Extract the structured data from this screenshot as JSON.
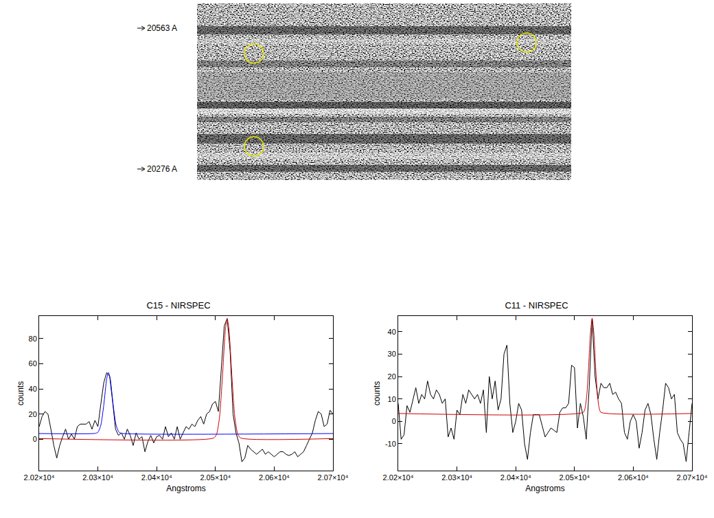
{
  "image_panel": {
    "wavelength_labels": [
      "20563 A",
      "20276 A"
    ]
  },
  "chart_data": [
    {
      "type": "line",
      "title": "C15 - NIRSPEC",
      "x_label": "Angstroms",
      "y_label": "counts",
      "xlim": [
        20200,
        20700
      ],
      "xticks": [
        {
          "value": 20200,
          "label": "2.02×10⁴"
        },
        {
          "value": 20300,
          "label": "2.03×10⁴"
        },
        {
          "value": 20400,
          "label": "2.04×10⁴"
        },
        {
          "value": 20500,
          "label": "2.05×10⁴"
        },
        {
          "value": 20600,
          "label": "2.06×10⁴"
        },
        {
          "value": 20700,
          "label": "2.07×10⁴"
        }
      ],
      "ylim": [
        -25,
        98
      ],
      "yticks": [
        0,
        20,
        40,
        60,
        80
      ],
      "grid": false,
      "series": [
        {
          "color": "#000000",
          "x": [
            20200,
            20205,
            20210,
            20215,
            20220,
            20225,
            20230,
            20235,
            20240,
            20245,
            20250,
            20255,
            20260,
            20265,
            20270,
            20275,
            20280,
            20285,
            20290,
            20295,
            20300,
            20305,
            20310,
            20315,
            20320,
            20325,
            20330,
            20335,
            20340,
            20345,
            20350,
            20355,
            20360,
            20365,
            20370,
            20375,
            20380,
            20385,
            20390,
            20395,
            20400,
            20405,
            20410,
            20415,
            20420,
            20425,
            20430,
            20435,
            20440,
            20445,
            20450,
            20455,
            20460,
            20465,
            20470,
            20475,
            20480,
            20485,
            20490,
            20495,
            20500,
            20505,
            20510,
            20515,
            20520,
            20525,
            20530,
            20535,
            20540,
            20545,
            20550,
            20555,
            20560,
            20565,
            20570,
            20575,
            20580,
            20585,
            20590,
            20595,
            20600,
            20605,
            20610,
            20615,
            20620,
            20625,
            20630,
            20635,
            20640,
            20645,
            20650,
            20655,
            20660,
            20665,
            20670,
            20675,
            20680,
            20685,
            20690,
            20695,
            20700
          ],
          "values": [
            10,
            18,
            22,
            20,
            8,
            -5,
            -15,
            -5,
            2,
            8,
            0,
            4,
            0,
            10,
            12,
            12,
            12,
            14,
            8,
            15,
            10,
            28,
            45,
            53,
            50,
            30,
            8,
            3,
            5,
            0,
            8,
            3,
            -5,
            5,
            0,
            2,
            -10,
            -2,
            3,
            -3,
            2,
            3,
            0,
            10,
            2,
            5,
            0,
            10,
            0,
            5,
            10,
            8,
            12,
            10,
            15,
            18,
            12,
            20,
            22,
            28,
            30,
            22,
            55,
            90,
            96,
            70,
            20,
            5,
            -3,
            -18,
            -15,
            -5,
            -8,
            -10,
            -12,
            -10,
            -8,
            -12,
            -10,
            -12,
            -14,
            -12,
            -10,
            -10,
            -12,
            -13,
            -12,
            -10,
            -14,
            -12,
            -10,
            -5,
            0,
            5,
            15,
            22,
            20,
            10,
            12,
            23,
            20
          ]
        },
        {
          "color": "#0000ff",
          "x": [
            20200,
            20295,
            20300,
            20305,
            20310,
            20315,
            20318,
            20321,
            20326,
            20331,
            20336,
            20341,
            20700
          ],
          "values": [
            4.5,
            4.6,
            5.5,
            11.1,
            27.2,
            48.1,
            53,
            48.1,
            27.2,
            11.1,
            5.5,
            4.6,
            4.5
          ]
        },
        {
          "color": "#cc0000",
          "x": [
            20200,
            20497,
            20502,
            20507,
            20512,
            20517,
            20520,
            20523,
            20528,
            20533,
            20538,
            20543,
            20700
          ],
          "values": [
            0.5,
            0.9,
            4.0,
            17.6,
            50.2,
            87.6,
            96,
            87.6,
            50.2,
            17.6,
            4.0,
            0.9,
            0.5
          ]
        }
      ]
    },
    {
      "type": "line",
      "title": "C11 - NIRSPEC",
      "x_label": "Angstroms",
      "y_label": "counts",
      "xlim": [
        20200,
        20700
      ],
      "xticks": [
        {
          "value": 20200,
          "label": "2.02×10⁴"
        },
        {
          "value": 20300,
          "label": "2.03×10⁴"
        },
        {
          "value": 20400,
          "label": "2.04×10⁴"
        },
        {
          "value": 20500,
          "label": "2.05×10⁴"
        },
        {
          "value": 20600,
          "label": "2.06×10⁴"
        },
        {
          "value": 20700,
          "label": "2.07×10⁴"
        }
      ],
      "ylim": [
        -22,
        47
      ],
      "yticks": [
        -10,
        0,
        10,
        20,
        30,
        40
      ],
      "grid": false,
      "series": [
        {
          "color": "#000000",
          "x": [
            20200,
            20205,
            20210,
            20215,
            20220,
            20225,
            20230,
            20235,
            20240,
            20245,
            20250,
            20255,
            20260,
            20265,
            20270,
            20275,
            20280,
            20285,
            20290,
            20295,
            20300,
            20305,
            20310,
            20315,
            20320,
            20325,
            20330,
            20335,
            20340,
            20345,
            20350,
            20355,
            20360,
            20365,
            20370,
            20375,
            20380,
            20385,
            20390,
            20395,
            20400,
            20405,
            20410,
            20415,
            20420,
            20425,
            20430,
            20435,
            20440,
            20445,
            20450,
            20455,
            20460,
            20465,
            20470,
            20475,
            20480,
            20485,
            20490,
            20495,
            20500,
            20505,
            20510,
            20515,
            20520,
            20525,
            20530,
            20535,
            20540,
            20545,
            20550,
            20555,
            20560,
            20565,
            20570,
            20575,
            20580,
            20585,
            20590,
            20595,
            20600,
            20605,
            20610,
            20615,
            20620,
            20625,
            20630,
            20635,
            20640,
            20645,
            20650,
            20655,
            20660,
            20665,
            20670,
            20675,
            20680,
            20685,
            20690,
            20695,
            20700
          ],
          "values": [
            8,
            -8,
            -6,
            7,
            4,
            10,
            15,
            8,
            12,
            10,
            18,
            12,
            10,
            14,
            12,
            8,
            10,
            -7,
            -3,
            -8,
            5,
            3,
            12,
            8,
            14,
            12,
            10,
            12,
            8,
            14,
            -5,
            20,
            10,
            18,
            5,
            10,
            30,
            34,
            8,
            -5,
            0,
            8,
            5,
            -10,
            -17,
            -5,
            3,
            3,
            3,
            -2,
            -7,
            -5,
            -3,
            -4,
            -5,
            4,
            6,
            6,
            8,
            25,
            24,
            -3,
            8,
            2,
            -8,
            15,
            46,
            20,
            10,
            17,
            15,
            15,
            17,
            12,
            13,
            10,
            8,
            -5,
            -8,
            0,
            3,
            0,
            -12,
            -5,
            5,
            8,
            3,
            -8,
            -17,
            -5,
            5,
            17,
            15,
            10,
            12,
            -5,
            -8,
            -10,
            -18,
            -5,
            8
          ]
        },
        {
          "color": "#cc0000",
          "x": [
            20200,
            20515,
            20518,
            20521,
            20524,
            20527,
            20530,
            20533,
            20536,
            20539,
            20542,
            20545,
            20700
          ],
          "values": [
            3.5,
            4.0,
            5.9,
            11.9,
            24.2,
            39,
            46,
            39,
            24.2,
            11.9,
            5.9,
            4.0,
            3.5
          ]
        }
      ]
    }
  ]
}
